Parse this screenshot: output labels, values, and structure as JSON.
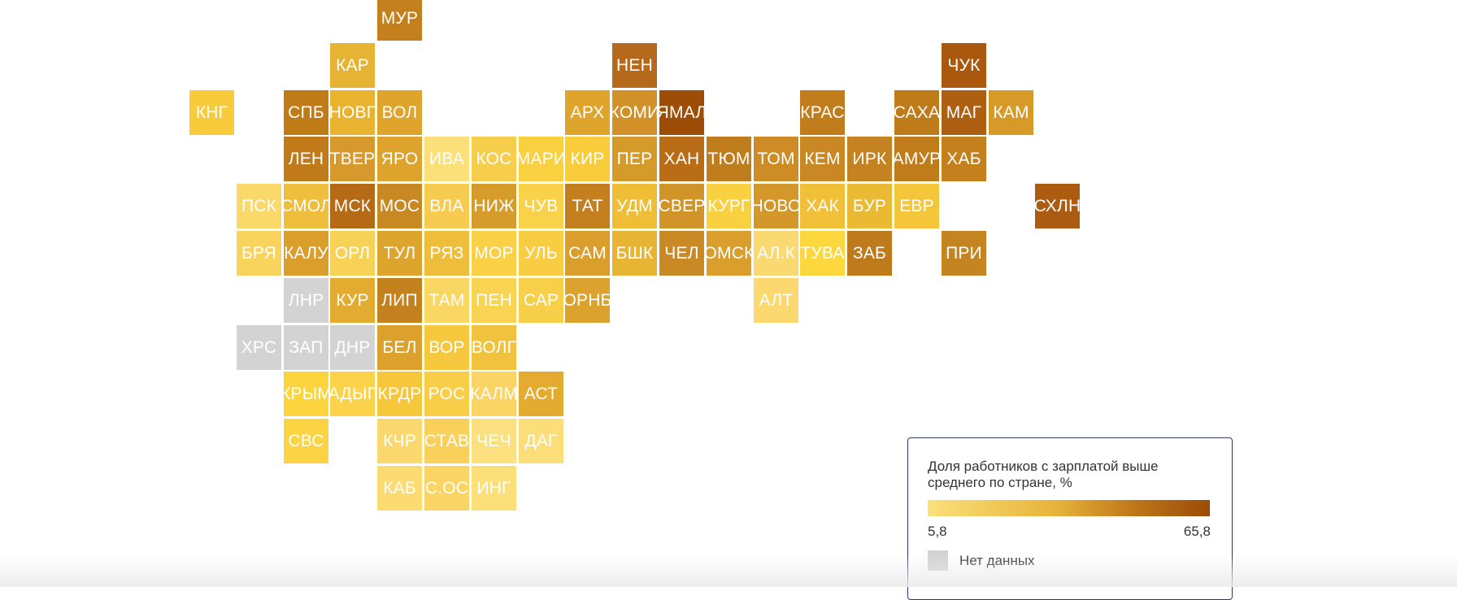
{
  "legend": {
    "title": "Доля работников с зарплатой выше среднего по стране, %",
    "min_label": "5,8",
    "max_label": "65,8",
    "min_value": 5.8,
    "max_value": 65.8,
    "nodata_label": "Нет данных",
    "nodata_color": "#d3d3d3",
    "color_scale": [
      "#fbe07a",
      "#e7b43a",
      "#bc7318",
      "#9a4c05"
    ]
  },
  "regions": [
    {
      "code": "МУР",
      "col": 8,
      "row": 0,
      "color": "#c3801c"
    },
    {
      "code": "КАР",
      "col": 7,
      "row": 1,
      "color": "#e7b332"
    },
    {
      "code": "НЕН",
      "col": 13,
      "row": 1,
      "color": "#b5691a"
    },
    {
      "code": "ЧУК",
      "col": 20,
      "row": 1,
      "color": "#a9580d"
    },
    {
      "code": "КНГ",
      "col": 4,
      "row": 2,
      "color": "#f8cb3c"
    },
    {
      "code": "СПБ",
      "col": 6,
      "row": 2,
      "color": "#c07b19"
    },
    {
      "code": "НОВГ",
      "col": 7,
      "row": 2,
      "color": "#e9b330"
    },
    {
      "code": "ВОЛ",
      "col": 8,
      "row": 2,
      "color": "#dfa42c"
    },
    {
      "code": "АРХ",
      "col": 12,
      "row": 2,
      "color": "#dea42c"
    },
    {
      "code": "КОМИ",
      "col": 13,
      "row": 2,
      "color": "#d19128"
    },
    {
      "code": "ЯМАЛ",
      "col": 14,
      "row": 2,
      "color": "#9e4d06"
    },
    {
      "code": "КРАС",
      "col": 17,
      "row": 2,
      "color": "#c17c1c"
    },
    {
      "code": "САХА",
      "col": 19,
      "row": 2,
      "color": "#bf7a19"
    },
    {
      "code": "МАГ",
      "col": 20,
      "row": 2,
      "color": "#ad5f12"
    },
    {
      "code": "КАМ",
      "col": 21,
      "row": 2,
      "color": "#d59a28"
    },
    {
      "code": "ЛЕН",
      "col": 6,
      "row": 3,
      "color": "#c17a19"
    },
    {
      "code": "ТВЕР",
      "col": 7,
      "row": 3,
      "color": "#d7992b"
    },
    {
      "code": "ЯРО",
      "col": 8,
      "row": 3,
      "color": "#dda32c"
    },
    {
      "code": "ИВА",
      "col": 9,
      "row": 3,
      "color": "#fbe07a"
    },
    {
      "code": "КОС",
      "col": 10,
      "row": 3,
      "color": "#f7ce4c"
    },
    {
      "code": "МАРИ",
      "col": 11,
      "row": 3,
      "color": "#f9d040"
    },
    {
      "code": "КИР",
      "col": 12,
      "row": 3,
      "color": "#f8cc3a"
    },
    {
      "code": "ПЕР",
      "col": 13,
      "row": 3,
      "color": "#d59b2a"
    },
    {
      "code": "ХАН",
      "col": 14,
      "row": 3,
      "color": "#b86c15"
    },
    {
      "code": "ТЮМ",
      "col": 15,
      "row": 3,
      "color": "#c07d1d"
    },
    {
      "code": "ТОМ",
      "col": 16,
      "row": 3,
      "color": "#cd8c25"
    },
    {
      "code": "КЕМ",
      "col": 17,
      "row": 3,
      "color": "#c98823"
    },
    {
      "code": "ИРК",
      "col": 18,
      "row": 3,
      "color": "#c48220"
    },
    {
      "code": "АМУР",
      "col": 19,
      "row": 3,
      "color": "#c07c1b"
    },
    {
      "code": "ХАБ",
      "col": 20,
      "row": 3,
      "color": "#c3801d"
    },
    {
      "code": "ПСК",
      "col": 5,
      "row": 4,
      "color": "#fad86a"
    },
    {
      "code": "СМОЛ",
      "col": 6,
      "row": 4,
      "color": "#eebe3c"
    },
    {
      "code": "МСК",
      "col": 7,
      "row": 4,
      "color": "#b66a15"
    },
    {
      "code": "МОС",
      "col": 8,
      "row": 4,
      "color": "#c88822"
    },
    {
      "code": "ВЛА",
      "col": 9,
      "row": 4,
      "color": "#f6cb50"
    },
    {
      "code": "НИЖ",
      "col": 10,
      "row": 4,
      "color": "#d69c2b"
    },
    {
      "code": "ЧУВ",
      "col": 11,
      "row": 4,
      "color": "#f9d249"
    },
    {
      "code": "ТАТ",
      "col": 12,
      "row": 4,
      "color": "#c4801f"
    },
    {
      "code": "УДМ",
      "col": 13,
      "row": 4,
      "color": "#efbd36"
    },
    {
      "code": "СВЕР",
      "col": 14,
      "row": 4,
      "color": "#d19429"
    },
    {
      "code": "КУРГ",
      "col": 15,
      "row": 4,
      "color": "#f9d040"
    },
    {
      "code": "НОВО",
      "col": 16,
      "row": 4,
      "color": "#d49729"
    },
    {
      "code": "ХАК",
      "col": 17,
      "row": 4,
      "color": "#f1c038"
    },
    {
      "code": "БУР",
      "col": 18,
      "row": 4,
      "color": "#eaba34"
    },
    {
      "code": "ЕВР",
      "col": 19,
      "row": 4,
      "color": "#f5c63a"
    },
    {
      "code": "СХЛН",
      "col": 22,
      "row": 4,
      "color": "#ab5c11"
    },
    {
      "code": "БРЯ",
      "col": 5,
      "row": 5,
      "color": "#f9d45c"
    },
    {
      "code": "КАЛУ",
      "col": 6,
      "row": 5,
      "color": "#d99e2b"
    },
    {
      "code": "ОРЛ",
      "col": 7,
      "row": 5,
      "color": "#f8d256"
    },
    {
      "code": "ТУЛ",
      "col": 8,
      "row": 5,
      "color": "#dea52e"
    },
    {
      "code": "РЯЗ",
      "col": 9,
      "row": 5,
      "color": "#eebd3c"
    },
    {
      "code": "МОР",
      "col": 10,
      "row": 5,
      "color": "#f9d046"
    },
    {
      "code": "УЛЬ",
      "col": 11,
      "row": 5,
      "color": "#f8cd44"
    },
    {
      "code": "САМ",
      "col": 12,
      "row": 5,
      "color": "#d99e2c"
    },
    {
      "code": "БШК",
      "col": 13,
      "row": 5,
      "color": "#e8b434"
    },
    {
      "code": "ЧЕЛ",
      "col": 14,
      "row": 5,
      "color": "#c98925"
    },
    {
      "code": "ОМСК",
      "col": 15,
      "row": 5,
      "color": "#d99e2c"
    },
    {
      "code": "АЛ.К",
      "col": 16,
      "row": 5,
      "color": "#fad872"
    },
    {
      "code": "ТУВА",
      "col": 17,
      "row": 5,
      "color": "#fcd73e"
    },
    {
      "code": "ЗАБ",
      "col": 18,
      "row": 5,
      "color": "#bf7a1c"
    },
    {
      "code": "ПРИ",
      "col": 20,
      "row": 5,
      "color": "#c58422"
    },
    {
      "code": "ЛНР",
      "col": 6,
      "row": 6,
      "color": "#d3d3d3",
      "nodata": true
    },
    {
      "code": "КУР",
      "col": 7,
      "row": 6,
      "color": "#e3ab2f"
    },
    {
      "code": "ЛИП",
      "col": 8,
      "row": 6,
      "color": "#c4821f"
    },
    {
      "code": "ТАМ",
      "col": 9,
      "row": 6,
      "color": "#fad662"
    },
    {
      "code": "ПЕН",
      "col": 10,
      "row": 6,
      "color": "#f9d352"
    },
    {
      "code": "САР",
      "col": 11,
      "row": 6,
      "color": "#f8cf48"
    },
    {
      "code": "ОРНБ",
      "col": 12,
      "row": 6,
      "color": "#dba22e"
    },
    {
      "code": "АЛТ",
      "col": 16,
      "row": 6,
      "color": "#fcd970"
    },
    {
      "code": "ХРС",
      "col": 5,
      "row": 7,
      "color": "#d3d3d3",
      "nodata": true
    },
    {
      "code": "ЗАП",
      "col": 6,
      "row": 7,
      "color": "#d3d3d3",
      "nodata": true
    },
    {
      "code": "ДНР",
      "col": 7,
      "row": 7,
      "color": "#d3d3d3",
      "nodata": true
    },
    {
      "code": "БЕЛ",
      "col": 8,
      "row": 7,
      "color": "#dba12c"
    },
    {
      "code": "ВОР",
      "col": 9,
      "row": 7,
      "color": "#f6c83e"
    },
    {
      "code": "ВОЛГ",
      "col": 10,
      "row": 7,
      "color": "#f1c23e"
    },
    {
      "code": "КРЫМ",
      "col": 6,
      "row": 8,
      "color": "#fbd43e"
    },
    {
      "code": "АДЫГ",
      "col": 7,
      "row": 8,
      "color": "#fbd24a"
    },
    {
      "code": "КРДР",
      "col": 8,
      "row": 8,
      "color": "#f6c73a"
    },
    {
      "code": "РОС",
      "col": 9,
      "row": 8,
      "color": "#f8ce48"
    },
    {
      "code": "КАЛМ",
      "col": 10,
      "row": 8,
      "color": "#fad464"
    },
    {
      "code": "АСТ",
      "col": 11,
      "row": 8,
      "color": "#e3ab30"
    },
    {
      "code": "СВС",
      "col": 6,
      "row": 9,
      "color": "#fbd343"
    },
    {
      "code": "КЧР",
      "col": 8,
      "row": 9,
      "color": "#fbd86e"
    },
    {
      "code": "СТАВ",
      "col": 9,
      "row": 9,
      "color": "#f9d05c"
    },
    {
      "code": "ЧЕЧ",
      "col": 10,
      "row": 9,
      "color": "#fbe07f"
    },
    {
      "code": "ДАГ",
      "col": 11,
      "row": 9,
      "color": "#fbdd7a"
    },
    {
      "code": "КАБ",
      "col": 8,
      "row": 10,
      "color": "#fbdb72"
    },
    {
      "code": "С.ОС",
      "col": 9,
      "row": 10,
      "color": "#fad464"
    },
    {
      "code": "ИНГ",
      "col": 10,
      "row": 10,
      "color": "#fbe07a"
    }
  ]
}
